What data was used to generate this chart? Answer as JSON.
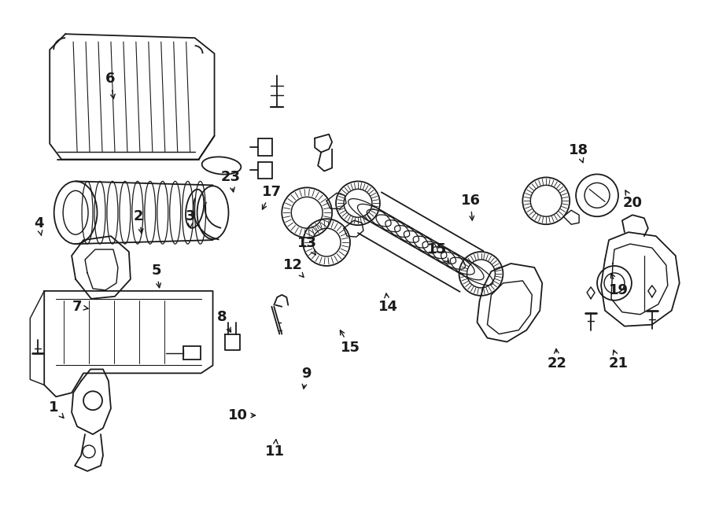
{
  "bg_color": "#ffffff",
  "line_color": "#1a1a1a",
  "figsize": [
    9.0,
    6.61
  ],
  "dpi": 100,
  "labels": {
    "1": [
      0.075,
      0.785,
      0.092,
      0.81
    ],
    "2": [
      0.195,
      0.415,
      0.2,
      0.455
    ],
    "3": [
      0.268,
      0.415,
      0.268,
      0.44
    ],
    "4": [
      0.053,
      0.43,
      0.058,
      0.458
    ],
    "5": [
      0.22,
      0.52,
      0.225,
      0.56
    ],
    "6": [
      0.155,
      0.15,
      0.16,
      0.195
    ],
    "7": [
      0.108,
      0.59,
      0.128,
      0.595
    ],
    "8": [
      0.313,
      0.61,
      0.328,
      0.645
    ],
    "9": [
      0.432,
      0.72,
      0.428,
      0.755
    ],
    "10": [
      0.335,
      0.8,
      0.365,
      0.8
    ],
    "11": [
      0.388,
      0.87,
      0.39,
      0.84
    ],
    "12": [
      0.413,
      0.51,
      0.432,
      0.538
    ],
    "13": [
      0.434,
      0.468,
      0.448,
      0.495
    ],
    "14": [
      0.548,
      0.59,
      0.545,
      0.558
    ],
    "15a": [
      0.495,
      0.67,
      0.478,
      0.63
    ],
    "15b": [
      0.618,
      0.48,
      0.638,
      0.51
    ],
    "16": [
      0.665,
      0.385,
      0.668,
      0.43
    ],
    "17": [
      0.383,
      0.368,
      0.368,
      0.408
    ],
    "18": [
      0.818,
      0.288,
      0.826,
      0.318
    ],
    "19": [
      0.875,
      0.558,
      0.862,
      0.52
    ],
    "20": [
      0.895,
      0.39,
      0.882,
      0.36
    ],
    "21": [
      0.875,
      0.7,
      0.866,
      0.668
    ],
    "22": [
      0.788,
      0.7,
      0.786,
      0.665
    ],
    "23": [
      0.325,
      0.34,
      0.33,
      0.375
    ]
  }
}
